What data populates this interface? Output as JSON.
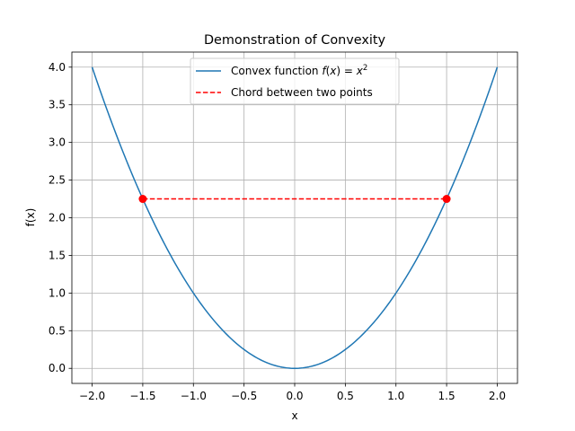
{
  "chart_data": {
    "type": "line",
    "title": "Demonstration of Convexity",
    "xlabel": "x",
    "ylabel": "f(x)",
    "xlim": [
      -2.2,
      2.2
    ],
    "ylim": [
      -0.2,
      4.2
    ],
    "grid": true,
    "legend_position": "upper center",
    "x_ticks": [
      -2.0,
      -1.5,
      -1.0,
      -0.5,
      0.0,
      0.5,
      1.0,
      1.5,
      2.0
    ],
    "x_tick_labels": [
      "−2.0",
      "−1.5",
      "−1.0",
      "−0.5",
      "0.0",
      "0.5",
      "1.0",
      "1.5",
      "2.0"
    ],
    "y_ticks": [
      0.0,
      0.5,
      1.0,
      1.5,
      2.0,
      2.5,
      3.0,
      3.5,
      4.0
    ],
    "y_tick_labels": [
      "0.0",
      "0.5",
      "1.0",
      "1.5",
      "2.0",
      "2.5",
      "3.0",
      "3.5",
      "4.0"
    ],
    "series": [
      {
        "name": "Convex function f(x) = x²",
        "function": "x^2",
        "x_range": [
          -2.0,
          2.0
        ],
        "color": "#1f77b4",
        "style": "solid"
      },
      {
        "name": "Chord between two points",
        "x": [
          -1.5,
          1.5
        ],
        "y": [
          2.25,
          2.25
        ],
        "color": "#ff0000",
        "style": "dashed"
      }
    ],
    "points": [
      {
        "x": -1.5,
        "y": 2.25,
        "color": "#ff0000"
      },
      {
        "x": 1.5,
        "y": 2.25,
        "color": "#ff0000"
      }
    ]
  }
}
